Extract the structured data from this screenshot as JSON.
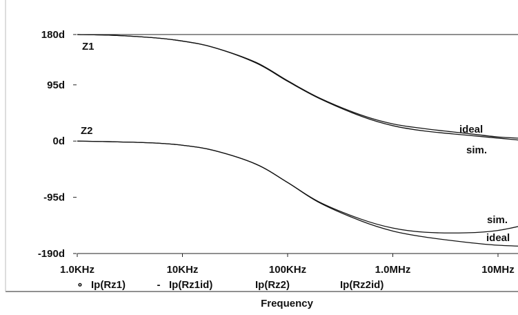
{
  "chart_data": {
    "type": "line",
    "title": "",
    "xlabel": "Frequency",
    "ylabel": "",
    "x_scale": "log",
    "xlim": [
      1000,
      20000000
    ],
    "ylim": [
      -190,
      180
    ],
    "x_ticks": [
      {
        "value": 1000,
        "label": "1.0KHz"
      },
      {
        "value": 10000,
        "label": "10KHz"
      },
      {
        "value": 100000,
        "label": "100KHz"
      },
      {
        "value": 1000000,
        "label": "1.0MHz"
      },
      {
        "value": 10000000,
        "label": "10MHz"
      }
    ],
    "y_ticks": [
      {
        "value": 180,
        "label": "180d"
      },
      {
        "value": 95,
        "label": "95d"
      },
      {
        "value": 0,
        "label": "0d"
      },
      {
        "value": -95,
        "label": "-95d"
      },
      {
        "value": -190,
        "label": "-190d"
      }
    ],
    "grid": false,
    "legend_position": "bottom",
    "x": [
      1000,
      2000,
      5000,
      10000,
      20000,
      50000,
      100000,
      200000,
      500000,
      1000000,
      2000000,
      5000000,
      10000000,
      20000000
    ],
    "series": [
      {
        "name": "Ip(Rz1)",
        "color": "#111111",
        "values": [
          180,
          179,
          175,
          169,
          158,
          132,
          101,
          72,
          42,
          26,
          17,
          10,
          5,
          0
        ]
      },
      {
        "name": "Ip(Rz1id)",
        "color": "#111111",
        "values": [
          180,
          179,
          175,
          169,
          158,
          133,
          102,
          73,
          44,
          29,
          21,
          13,
          7,
          4
        ]
      },
      {
        "name": "Ip(Rz2)",
        "color": "#111111",
        "values": [
          0,
          -1,
          -3,
          -7,
          -16,
          -39,
          -70,
          -103,
          -132,
          -147,
          -154,
          -155,
          -151,
          -140
        ]
      },
      {
        "name": "Ip(Rz2id)",
        "color": "#111111",
        "values": [
          0,
          -1,
          -3,
          -7,
          -16,
          -39,
          -70,
          -104,
          -135,
          -152,
          -162,
          -171,
          -176,
          -178
        ]
      }
    ],
    "annotations": [
      {
        "text": "Z1"
      },
      {
        "text": "Z2"
      },
      {
        "text": "ideal"
      },
      {
        "text": "sim."
      },
      {
        "text": "sim."
      },
      {
        "text": "ideal"
      }
    ],
    "legend": [
      {
        "marker": "∘",
        "label": "Ip(Rz1)"
      },
      {
        "marker": "-",
        "label": "Ip(Rz1id)"
      },
      {
        "marker": "",
        "label": "Ip(Rz2)"
      },
      {
        "marker": "",
        "label": "Ip(Rz2id)"
      }
    ]
  }
}
